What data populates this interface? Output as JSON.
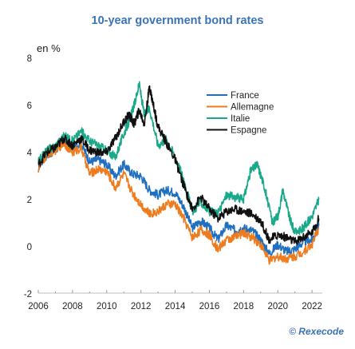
{
  "title": "10-year government bond rates",
  "unit_label": "en %",
  "credit": "© Rexecode",
  "colors": {
    "France": "#1f6fc0",
    "Allemagne": "#ef7b1f",
    "Italie": "#1aa88a",
    "Espagne": "#111111"
  },
  "chart_data": {
    "type": "line",
    "title": "10-year government bond rates",
    "ylabel": "en %",
    "xlabel": "",
    "ylim": [
      -2,
      8
    ],
    "xlim": [
      2006,
      2022.6
    ],
    "yticks": [
      "8",
      "6",
      "4",
      "2",
      "0",
      "-2"
    ],
    "xticks": [
      "2006",
      "2008",
      "2010",
      "2012",
      "2014",
      "2016",
      "2018",
      "2020",
      "2022"
    ],
    "legend_position": "top-right",
    "grid": false,
    "series": [
      {
        "name": "France",
        "color": "#1f6fc0",
        "x": [
          2006.0,
          2006.5,
          2007.0,
          2007.5,
          2008.0,
          2008.5,
          2009.0,
          2009.5,
          2010.0,
          2010.5,
          2011.0,
          2011.5,
          2012.0,
          2012.5,
          2013.0,
          2013.5,
          2014.0,
          2014.5,
          2015.0,
          2015.5,
          2016.0,
          2016.5,
          2017.0,
          2017.5,
          2018.0,
          2018.5,
          2019.0,
          2019.5,
          2020.0,
          2020.5,
          2021.0,
          2021.5,
          2022.0,
          2022.4
        ],
        "y": [
          3.4,
          3.9,
          4.1,
          4.5,
          4.2,
          4.4,
          3.6,
          3.7,
          3.5,
          3.0,
          3.5,
          3.1,
          3.0,
          2.4,
          2.2,
          2.4,
          2.3,
          1.7,
          0.8,
          1.1,
          0.8,
          0.3,
          0.9,
          0.7,
          0.8,
          0.7,
          0.3,
          -0.3,
          0.1,
          -0.2,
          -0.1,
          0.2,
          0.3,
          0.9
        ]
      },
      {
        "name": "Allemagne",
        "color": "#ef7b1f",
        "x": [
          2006.0,
          2006.5,
          2007.0,
          2007.5,
          2008.0,
          2008.5,
          2009.0,
          2009.5,
          2010.0,
          2010.5,
          2011.0,
          2011.5,
          2012.0,
          2012.5,
          2013.0,
          2013.5,
          2014.0,
          2014.5,
          2015.0,
          2015.5,
          2016.0,
          2016.5,
          2017.0,
          2017.5,
          2018.0,
          2018.5,
          2019.0,
          2019.5,
          2020.0,
          2020.5,
          2021.0,
          2021.5,
          2022.0,
          2022.4
        ],
        "y": [
          3.3,
          3.9,
          4.1,
          4.4,
          4.0,
          4.2,
          3.1,
          3.3,
          3.2,
          2.5,
          3.1,
          2.3,
          1.8,
          1.4,
          1.5,
          1.8,
          1.8,
          1.2,
          0.4,
          0.7,
          0.5,
          -0.1,
          0.3,
          0.4,
          0.6,
          0.4,
          0.1,
          -0.6,
          -0.4,
          -0.5,
          -0.4,
          -0.2,
          0.1,
          0.8
        ]
      },
      {
        "name": "Italie",
        "color": "#1aa88a",
        "x": [
          2006.0,
          2006.5,
          2007.0,
          2007.5,
          2008.0,
          2008.5,
          2009.0,
          2009.5,
          2010.0,
          2010.5,
          2011.0,
          2011.3,
          2011.6,
          2011.9,
          2012.2,
          2012.5,
          2013.0,
          2013.5,
          2014.0,
          2014.5,
          2015.0,
          2015.5,
          2016.0,
          2016.5,
          2017.0,
          2017.5,
          2018.0,
          2018.4,
          2018.8,
          2019.2,
          2019.7,
          2020.0,
          2020.3,
          2020.7,
          2021.0,
          2021.5,
          2022.0,
          2022.4
        ],
        "y": [
          3.6,
          4.1,
          4.3,
          4.7,
          4.5,
          4.9,
          4.5,
          4.3,
          4.1,
          3.8,
          4.8,
          5.3,
          6.0,
          6.9,
          5.6,
          5.9,
          4.3,
          4.6,
          3.8,
          2.9,
          1.5,
          1.9,
          1.5,
          1.4,
          2.2,
          2.1,
          2.0,
          3.2,
          3.5,
          2.6,
          1.0,
          1.3,
          2.4,
          1.2,
          0.6,
          0.8,
          1.3,
          2.0
        ]
      },
      {
        "name": "Espagne",
        "color": "#111111",
        "x": [
          2006.0,
          2006.5,
          2007.0,
          2007.5,
          2008.0,
          2008.5,
          2009.0,
          2009.5,
          2010.0,
          2010.5,
          2011.0,
          2011.3,
          2011.6,
          2011.9,
          2012.2,
          2012.5,
          2012.7,
          2013.0,
          2013.5,
          2014.0,
          2014.5,
          2015.0,
          2015.5,
          2016.0,
          2016.5,
          2017.0,
          2017.5,
          2018.0,
          2018.5,
          2019.0,
          2019.5,
          2020.0,
          2020.5,
          2021.0,
          2021.5,
          2022.0,
          2022.4
        ],
        "y": [
          3.5,
          4.0,
          4.2,
          4.6,
          4.3,
          4.6,
          4.1,
          4.0,
          4.0,
          4.6,
          5.3,
          5.6,
          5.2,
          5.8,
          5.2,
          6.8,
          6.1,
          5.1,
          4.4,
          3.7,
          2.6,
          1.6,
          2.1,
          1.6,
          1.2,
          1.5,
          1.6,
          1.5,
          1.4,
          1.1,
          0.3,
          0.5,
          0.4,
          0.2,
          0.4,
          0.6,
          1.2
        ]
      }
    ]
  }
}
